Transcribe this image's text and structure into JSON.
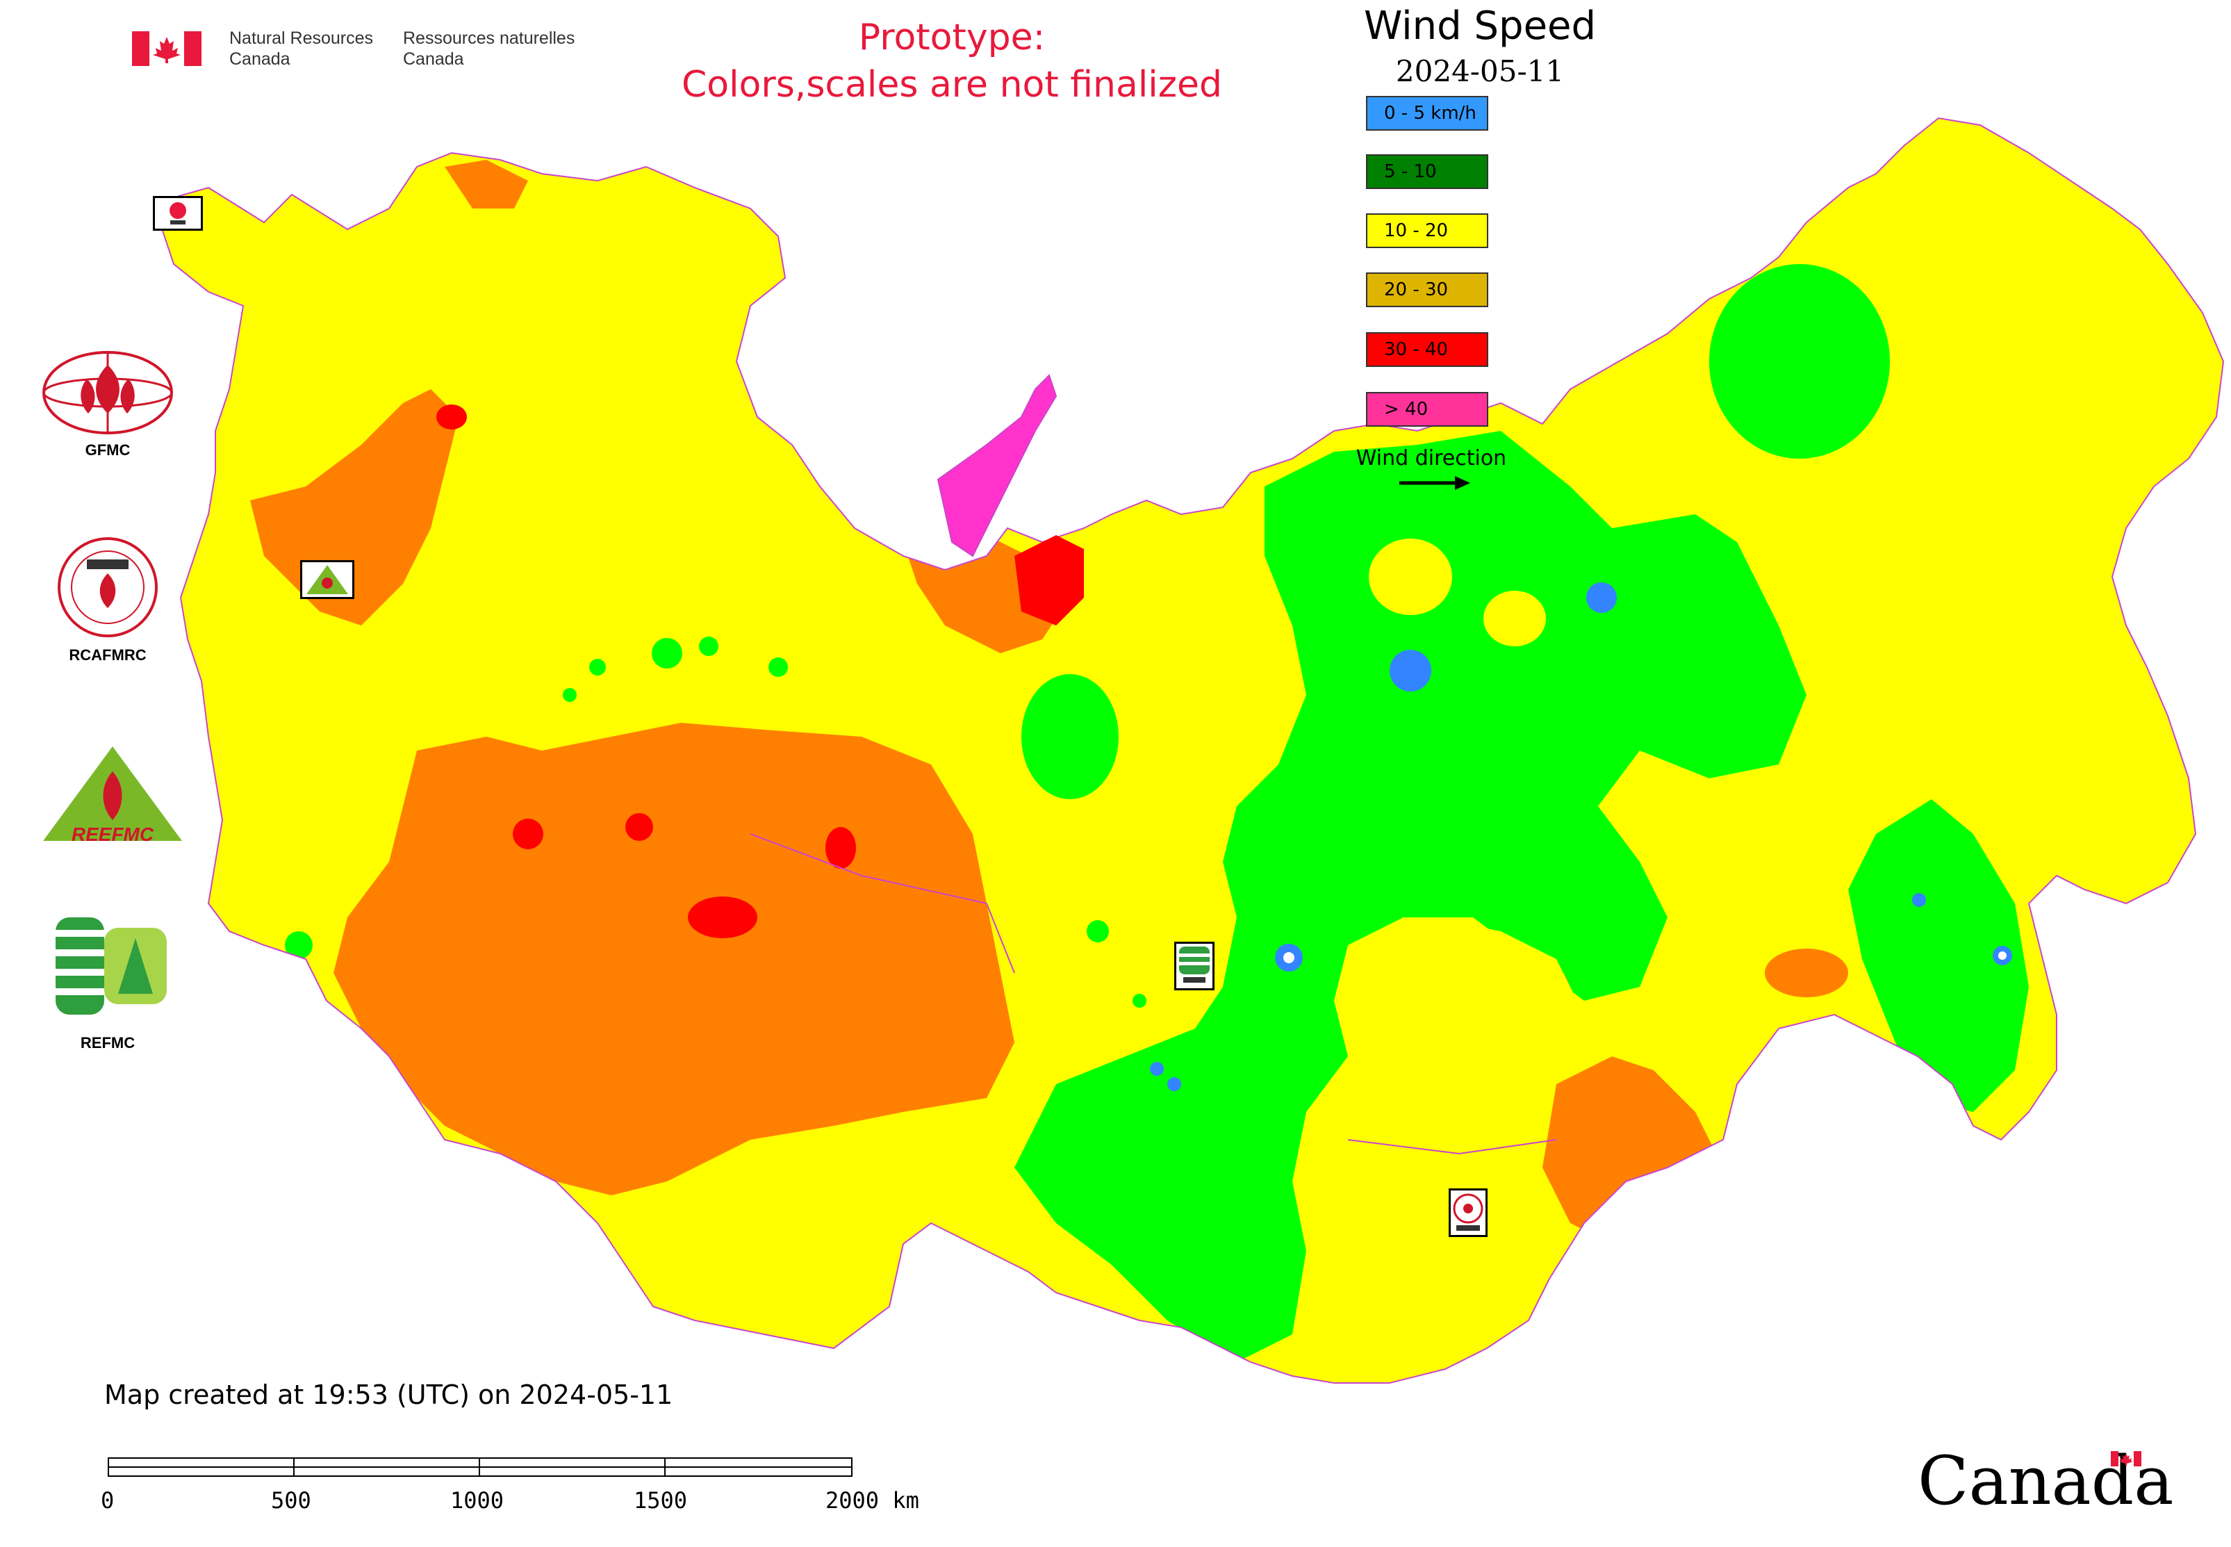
{
  "header": {
    "agency_en": [
      "Natural Resources",
      "Canada"
    ],
    "agency_fr": [
      "Ressources naturelles",
      "Canada"
    ],
    "prototype_line1": "Prototype:",
    "prototype_line2": "Colors,scales are not finalized"
  },
  "legend": {
    "title": "Wind Speed",
    "date": "2024-05-11",
    "items": [
      {
        "label": "0 - 5 km/h",
        "color": "#3399ff"
      },
      {
        "label": "5 - 10",
        "color": "#008000"
      },
      {
        "label": "10 - 20",
        "color": "#ffff00"
      },
      {
        "label": "20 - 30",
        "color": "#ddb400"
      },
      {
        "label": "30 - 40",
        "color": "#ff0000"
      },
      {
        "label": "> 40",
        "color": "#ff3399"
      }
    ],
    "wind_direction_label": "Wind direction"
  },
  "map_colors": {
    "very_low": "#3385ff",
    "low": "#00ff00",
    "moderate": "#ffff00",
    "high": "#ff8000",
    "very_high": "#ff0000",
    "extreme": "#ff33cc",
    "boundary": "#cc44cc"
  },
  "organizations": {
    "gfmc": "GFMC",
    "rcafmrc": "RCAFMRC",
    "reefmc": "REFMC",
    "reefmc_logo_text": "REEFMC",
    "refmc": "REFMC"
  },
  "footer": {
    "created": "Map created at 19:53 (UTC) on 2024-05-11",
    "scale_ticks": [
      "0",
      "500",
      "1000",
      "1500",
      "2000 km"
    ],
    "canada_wordmark": "Canada"
  }
}
